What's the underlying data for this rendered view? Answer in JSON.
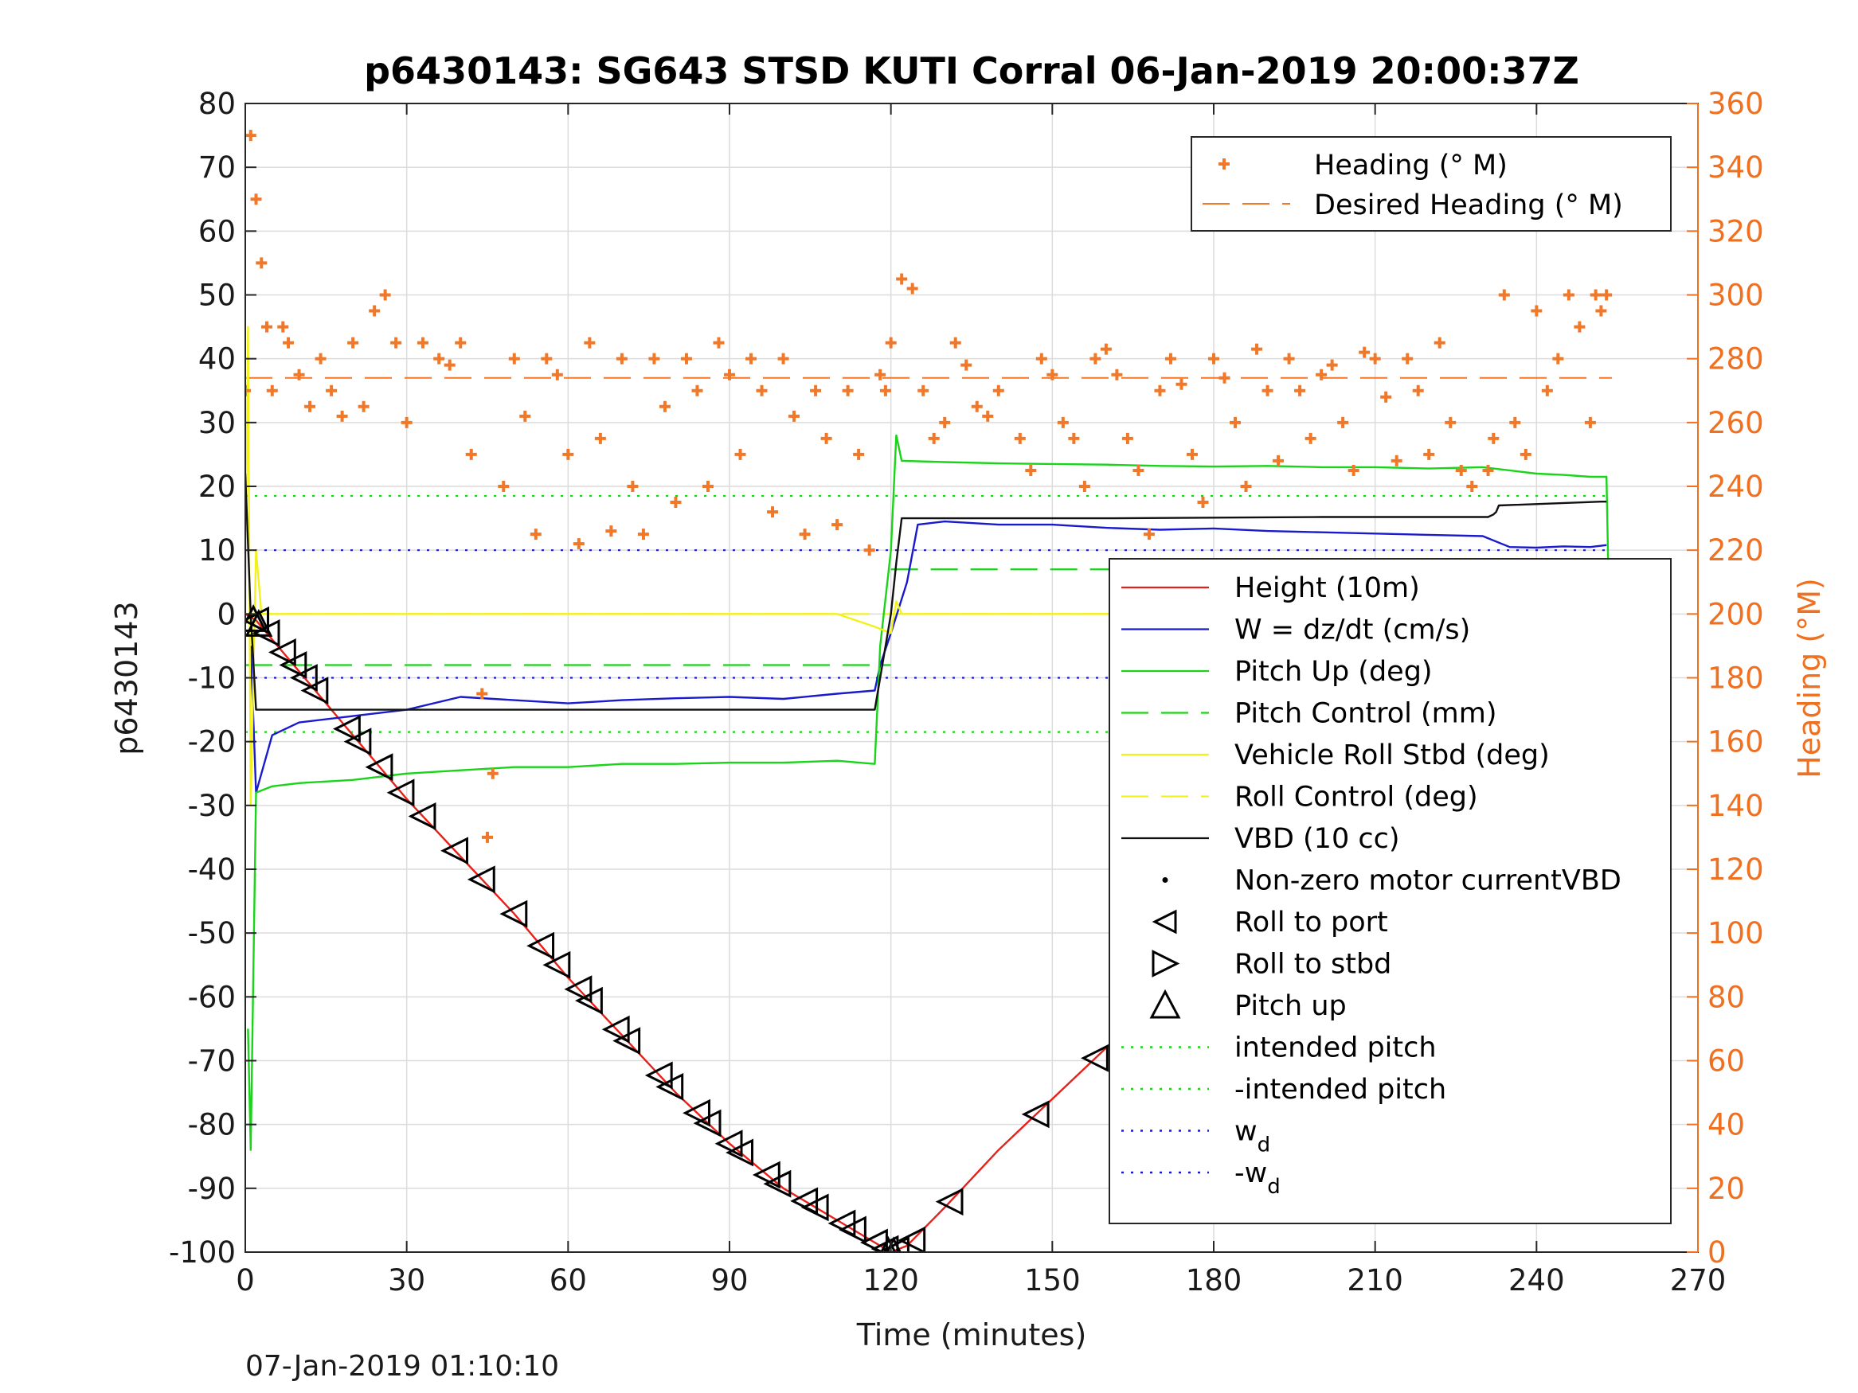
{
  "chart_data": {
    "type": "line",
    "title": "p6430143: SG643 STSD KUTI Corral 06-Jan-2019 20:00:37Z",
    "xlabel": "Time (minutes)",
    "ylabel": "p6430143",
    "ylabel_right": "Heading (°M)",
    "footer": "07-Jan-2019 01:10:10",
    "xlim": [
      0,
      270
    ],
    "ylim": [
      -100,
      80
    ],
    "ylim_right": [
      0,
      360
    ],
    "x_ticks": [
      "0",
      "30",
      "60",
      "90",
      "120",
      "150",
      "180",
      "210",
      "240",
      "270"
    ],
    "y_ticks": [
      "80",
      "70",
      "60",
      "50",
      "40",
      "30",
      "20",
      "10",
      "0",
      "-10",
      "-20",
      "-30",
      "-40",
      "-50",
      "-60",
      "-70",
      "-80",
      "-90",
      "-100"
    ],
    "y_ticks_right": [
      "360",
      "340",
      "320",
      "300",
      "280",
      "260",
      "240",
      "220",
      "200",
      "180",
      "160",
      "140",
      "120",
      "100",
      "80",
      "60",
      "40",
      "20",
      "0"
    ],
    "grid": true,
    "legend_heading": {
      "placement": "top-right",
      "entries": [
        "Heading (° M)",
        "Desired Heading (° M)"
      ]
    },
    "legend_main": {
      "placement": "right",
      "entries": [
        {
          "label": "Height (10m)"
        },
        {
          "label": "W = dz/dt (cm/s)"
        },
        {
          "label": "Pitch Up (deg)"
        },
        {
          "label": "Pitch Control (mm)"
        },
        {
          "label": "Vehicle Roll Stbd (deg)"
        },
        {
          "label": "Roll Control (deg)"
        },
        {
          "label": "VBD (10 cc)"
        },
        {
          "label": "Non-zero motor currentVBD"
        },
        {
          "label": "Roll to port"
        },
        {
          "label": "Roll to stbd"
        },
        {
          "label": "Pitch up"
        },
        {
          "label": "intended pitch"
        },
        {
          "label": "-intended pitch"
        },
        {
          "label": "w",
          "sub": "d"
        },
        {
          "label": "-w",
          "sub": "d"
        }
      ]
    },
    "colors": {
      "height": "#e8201a",
      "w": "#1a1acd",
      "pitch": "#19d419",
      "roll": "#f2f21a",
      "vbd": "#111111",
      "heading": "#f07828",
      "marker": "#000000"
    },
    "series": [
      {
        "name": "Height (10m)",
        "x": [
          0,
          2,
          10,
          20,
          30,
          40,
          50,
          60,
          70,
          80,
          90,
          100,
          110,
          118,
          120,
          123,
          130,
          140,
          150,
          160,
          170,
          180,
          190,
          200,
          210,
          220,
          230,
          240,
          250,
          254
        ],
        "y": [
          0,
          -1,
          -9,
          -19,
          -29,
          -38,
          -47,
          -57,
          -66,
          -75,
          -83,
          -90,
          -95,
          -99,
          -100,
          -99,
          -93,
          -84,
          -76,
          -68,
          -59,
          -51,
          -43,
          -36,
          -28,
          -20,
          -13,
          -7,
          -2,
          0
        ]
      },
      {
        "name": "W = dz/dt (cm/s)",
        "x": [
          1,
          2,
          5,
          10,
          20,
          30,
          40,
          50,
          60,
          70,
          80,
          90,
          100,
          110,
          117,
          118,
          120,
          123,
          125,
          130,
          140,
          150,
          160,
          170,
          180,
          190,
          200,
          210,
          220,
          230,
          235,
          240,
          245,
          250,
          253
        ],
        "y": [
          -5,
          -28,
          -19,
          -17,
          -16,
          -15,
          -13,
          -13.5,
          -14,
          -13.5,
          -13.2,
          -13,
          -13.3,
          -12.5,
          -12,
          -8,
          -3,
          5,
          14,
          14.5,
          14,
          14,
          13.5,
          13.2,
          13.4,
          13,
          12.8,
          12.6,
          12.4,
          12.2,
          10.5,
          10.4,
          10.6,
          10.5,
          10.8
        ]
      },
      {
        "name": "Pitch Up (deg)",
        "x": [
          0.5,
          1,
          2,
          5,
          10,
          20,
          30,
          40,
          50,
          60,
          70,
          80,
          90,
          100,
          110,
          117,
          118,
          120,
          121,
          122,
          130,
          140,
          150,
          160,
          170,
          180,
          190,
          200,
          210,
          220,
          230,
          240,
          245,
          250,
          253,
          253.5
        ],
        "y": [
          -65,
          -84,
          -28,
          -27,
          -26.5,
          -26,
          -25,
          -24.5,
          -24,
          -24,
          -23.5,
          -23.5,
          -23.3,
          -23.3,
          -23,
          -23.5,
          -5,
          10,
          28,
          24,
          23.8,
          23.6,
          23.5,
          23.4,
          23.2,
          23.1,
          23.2,
          23,
          23,
          22.8,
          23,
          22,
          21.8,
          21.5,
          21.5,
          0
        ]
      },
      {
        "name": "Vehicle Roll Stbd (deg)",
        "x": [
          0,
          0.5,
          1,
          2,
          3,
          5,
          8,
          10,
          20,
          30,
          40,
          50,
          60,
          70,
          80,
          90,
          100,
          110,
          117,
          120,
          121,
          122,
          130,
          140,
          150,
          160,
          170,
          180,
          190,
          200,
          210,
          220,
          230,
          240,
          250,
          253
        ],
        "y": [
          0,
          45,
          -30,
          10,
          0,
          0,
          0,
          0,
          0,
          0,
          0,
          0,
          0,
          0,
          0,
          0,
          0,
          0,
          -2,
          -3,
          2,
          0,
          0,
          0,
          0,
          0,
          0,
          0,
          0,
          0,
          0,
          0,
          0,
          0,
          0,
          -10
        ]
      },
      {
        "name": "VBD (10 cc)",
        "x": [
          0,
          1,
          2,
          5,
          20,
          60,
          100,
          117,
          118,
          120,
          121,
          122,
          130,
          160,
          200,
          231,
          232,
          232.5,
          233,
          252,
          253
        ],
        "y": [
          22,
          0,
          -15,
          -15,
          -15,
          -15,
          -15,
          -15,
          -10,
          0,
          8,
          15,
          15,
          15,
          15.2,
          15.2,
          15.6,
          16,
          17,
          17.6,
          17.6
        ]
      },
      {
        "name": "Heading (° M)",
        "axis": "right",
        "x": [
          0,
          1,
          2,
          3,
          4,
          5,
          7,
          8,
          10,
          12,
          14,
          16,
          18,
          20,
          22,
          24,
          26,
          28,
          30,
          33,
          36,
          38,
          40,
          42,
          44,
          45,
          46,
          48,
          50,
          52,
          54,
          56,
          58,
          60,
          62,
          64,
          66,
          68,
          70,
          72,
          74,
          76,
          78,
          80,
          82,
          84,
          86,
          88,
          90,
          92,
          94,
          96,
          98,
          100,
          102,
          104,
          106,
          108,
          110,
          112,
          114,
          116,
          118,
          119,
          120,
          122,
          124,
          126,
          128,
          130,
          132,
          134,
          136,
          138,
          140,
          144,
          146,
          148,
          150,
          152,
          154,
          156,
          158,
          160,
          162,
          164,
          166,
          168,
          170,
          172,
          174,
          176,
          178,
          180,
          182,
          184,
          186,
          188,
          190,
          192,
          194,
          196,
          198,
          200,
          202,
          204,
          206,
          208,
          210,
          212,
          214,
          216,
          218,
          220,
          222,
          224,
          226,
          228,
          230,
          231,
          232,
          234,
          236,
          238,
          240,
          242,
          244,
          246,
          248,
          250,
          251,
          252,
          253
        ],
        "y": [
          270,
          350,
          330,
          310,
          290,
          270,
          290,
          285,
          275,
          265,
          280,
          270,
          262,
          285,
          265,
          295,
          300,
          285,
          260,
          285,
          280,
          278,
          285,
          250,
          175,
          130,
          150,
          240,
          280,
          262,
          225,
          280,
          275,
          250,
          222,
          285,
          255,
          226,
          280,
          240,
          225,
          280,
          265,
          235,
          280,
          270,
          240,
          285,
          275,
          250,
          280,
          270,
          232,
          280,
          262,
          225,
          270,
          255,
          228,
          270,
          250,
          220,
          275,
          270,
          285,
          305,
          302,
          270,
          255,
          260,
          285,
          278,
          265,
          262,
          270,
          255,
          245,
          280,
          275,
          260,
          255,
          240,
          280,
          283,
          275,
          255,
          245,
          225,
          270,
          280,
          272,
          250,
          235,
          280,
          274,
          260,
          240,
          283,
          270,
          248,
          280,
          270,
          255,
          275,
          278,
          260,
          245,
          282,
          280,
          268,
          248,
          280,
          270,
          250,
          285,
          260,
          245,
          240,
          180,
          245,
          255,
          300,
          260,
          250,
          295,
          270,
          280,
          300,
          290,
          260,
          300,
          295,
          300
        ]
      }
    ],
    "desired_heading": 274,
    "reference_lines": [
      {
        "name": "intended pitch",
        "y": 18.5,
        "color": "#19d419",
        "style": "dotted"
      },
      {
        "name": "-intended pitch",
        "y": -18.5,
        "color": "#19d419",
        "style": "dotted"
      },
      {
        "name": "w_d",
        "y": 10,
        "color": "#1a1acd",
        "style": "dotted"
      },
      {
        "name": "-w_d",
        "y": -10,
        "color": "#1a1acd",
        "style": "dotted"
      },
      {
        "name": "Pitch Control (mm)",
        "segments": [
          [
            0,
            120,
            -8
          ],
          [
            120,
            254,
            7
          ]
        ],
        "color": "#19d419",
        "style": "dashed"
      },
      {
        "name": "Roll Control (deg)",
        "segments": [
          [
            0,
            254,
            0
          ]
        ],
        "color": "#f2f21a",
        "style": "dashed"
      }
    ],
    "roll_port_markers": [
      2,
      4,
      7,
      9,
      11,
      13,
      19,
      21,
      25,
      29,
      33,
      39,
      44,
      50,
      55,
      58,
      62,
      64,
      69,
      71,
      77,
      79,
      84,
      86,
      90,
      92,
      97,
      99,
      104,
      106,
      111,
      113,
      117,
      119,
      121,
      124,
      131,
      147,
      158,
      168,
      170,
      175,
      181,
      192,
      198,
      204,
      210,
      216,
      222,
      225,
      230,
      233,
      236,
      239,
      242,
      246,
      249,
      251,
      253
    ],
    "pitch_up_markers": [
      1.5,
      2.5,
      119.5,
      120.5,
      171
    ]
  }
}
